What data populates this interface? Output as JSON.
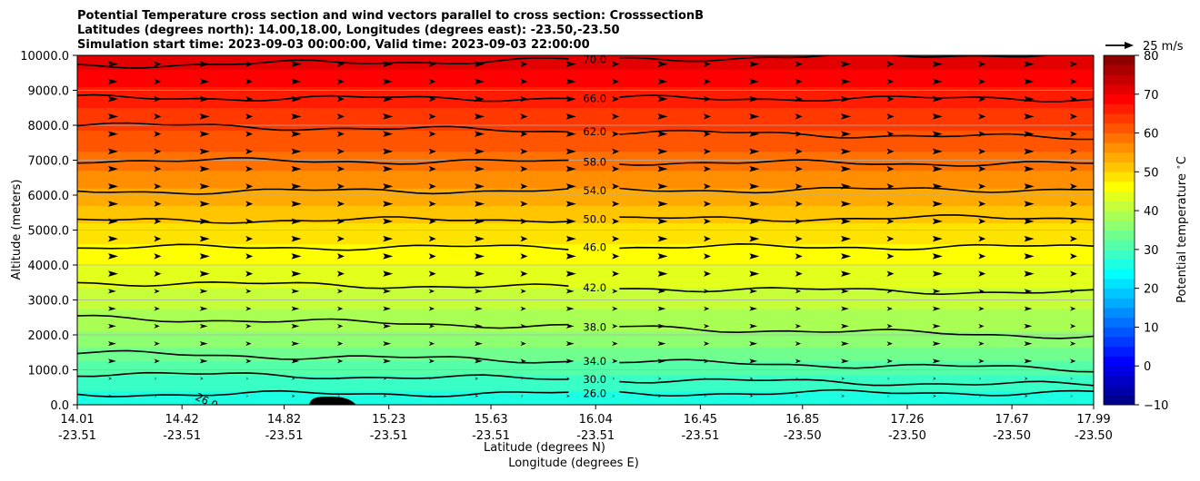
{
  "chart_data": {
    "type": "heatmap",
    "title_lines": [
      "Potential Temperature cross section and wind vectors parallel to cross section: CrosssectionB",
      "Latitudes (degrees north): 14.00,18.00, Longitudes (degrees east): -23.50,-23.50",
      "Simulation start time: 2023-09-03 00:00:00, Valid time: 2023-09-03 22:00:00"
    ],
    "xlabel_lat": "Latitude (degrees N)",
    "xlabel_lon": "Longitude (degrees E)",
    "ylabel": "Altitude (meters)",
    "ylim": [
      0,
      10000
    ],
    "yticks": [
      0,
      1000,
      2000,
      3000,
      4000,
      5000,
      6000,
      7000,
      8000,
      9000,
      10000
    ],
    "ytick_labels": [
      "0.0",
      "1000.0",
      "2000.0",
      "3000.0",
      "4000.0",
      "5000.0",
      "6000.0",
      "7000.0",
      "8000.0",
      "9000.0",
      "10000.0"
    ],
    "xticks": [
      {
        "lat": "14.01",
        "lon": "-23.51"
      },
      {
        "lat": "14.42",
        "lon": "-23.51"
      },
      {
        "lat": "14.82",
        "lon": "-23.51"
      },
      {
        "lat": "15.23",
        "lon": "-23.51"
      },
      {
        "lat": "15.63",
        "lon": "-23.51"
      },
      {
        "lat": "16.04",
        "lon": "-23.51"
      },
      {
        "lat": "16.45",
        "lon": "-23.51"
      },
      {
        "lat": "16.85",
        "lon": "-23.50"
      },
      {
        "lat": "17.26",
        "lon": "-23.50"
      },
      {
        "lat": "17.67",
        "lon": "-23.50"
      },
      {
        "lat": "17.99",
        "lon": "-23.50"
      }
    ],
    "xlim": [
      14.01,
      17.99
    ],
    "grid": true,
    "colorbar": {
      "label": "Potential temperature $^\\circ$C",
      "min": -10,
      "max": 80,
      "step": 2.5,
      "ticks": [
        -10,
        0,
        10,
        20,
        30,
        40,
        50,
        60,
        70,
        80
      ],
      "colormap": "jet"
    },
    "field_profile": [
      {
        "altitude": 0,
        "value": 25
      },
      {
        "altitude": 500,
        "value": 28
      },
      {
        "altitude": 1000,
        "value": 31
      },
      {
        "altitude": 1500,
        "value": 34
      },
      {
        "altitude": 2000,
        "value": 37
      },
      {
        "altitude": 3000,
        "value": 41
      },
      {
        "altitude": 4000,
        "value": 45
      },
      {
        "altitude": 5000,
        "value": 49
      },
      {
        "altitude": 6000,
        "value": 54
      },
      {
        "altitude": 7000,
        "value": 59
      },
      {
        "altitude": 8000,
        "value": 63
      },
      {
        "altitude": 9000,
        "value": 67
      },
      {
        "altitude": 10000,
        "value": 72
      }
    ],
    "contours": [
      {
        "label": "26.0",
        "left_alt": 300,
        "right_alt": 350,
        "label_lat": 16.04
      },
      {
        "label": "30.0",
        "left_alt": 900,
        "right_alt": 560,
        "label_lat": 16.04
      },
      {
        "label": "34.0",
        "left_alt": 1480,
        "right_alt": 1020,
        "label_lat": 16.04
      },
      {
        "label": "38.0",
        "left_alt": 2500,
        "right_alt": 1960,
        "label_lat": 16.04
      },
      {
        "label": "42.0",
        "left_alt": 3500,
        "right_alt": 3200,
        "label_lat": 16.04
      },
      {
        "label": "46.0",
        "left_alt": 4500,
        "right_alt": 4520,
        "label_lat": 16.04
      },
      {
        "label": "50.0",
        "left_alt": 5260,
        "right_alt": 5360,
        "label_lat": 16.04
      },
      {
        "label": "54.0",
        "left_alt": 6100,
        "right_alt": 6170,
        "label_lat": 16.04
      },
      {
        "label": "58.0",
        "left_alt": 7000,
        "right_alt": 6890,
        "label_lat": 16.04
      },
      {
        "label": "62.0",
        "left_alt": 8020,
        "right_alt": 7630,
        "label_lat": 16.04
      },
      {
        "label": "66.0",
        "left_alt": 8780,
        "right_alt": 8760,
        "label_lat": 16.04
      },
      {
        "label": "70.0",
        "left_alt": 9700,
        "right_alt": 10050,
        "label_lat": 16.04
      }
    ],
    "terrain_label": "26.0",
    "quiver_key": {
      "label": "25 m/s",
      "speed": 25
    },
    "wind": {
      "direction": "parallel, toward increasing latitude",
      "rows": 20,
      "cols": 22
    }
  }
}
